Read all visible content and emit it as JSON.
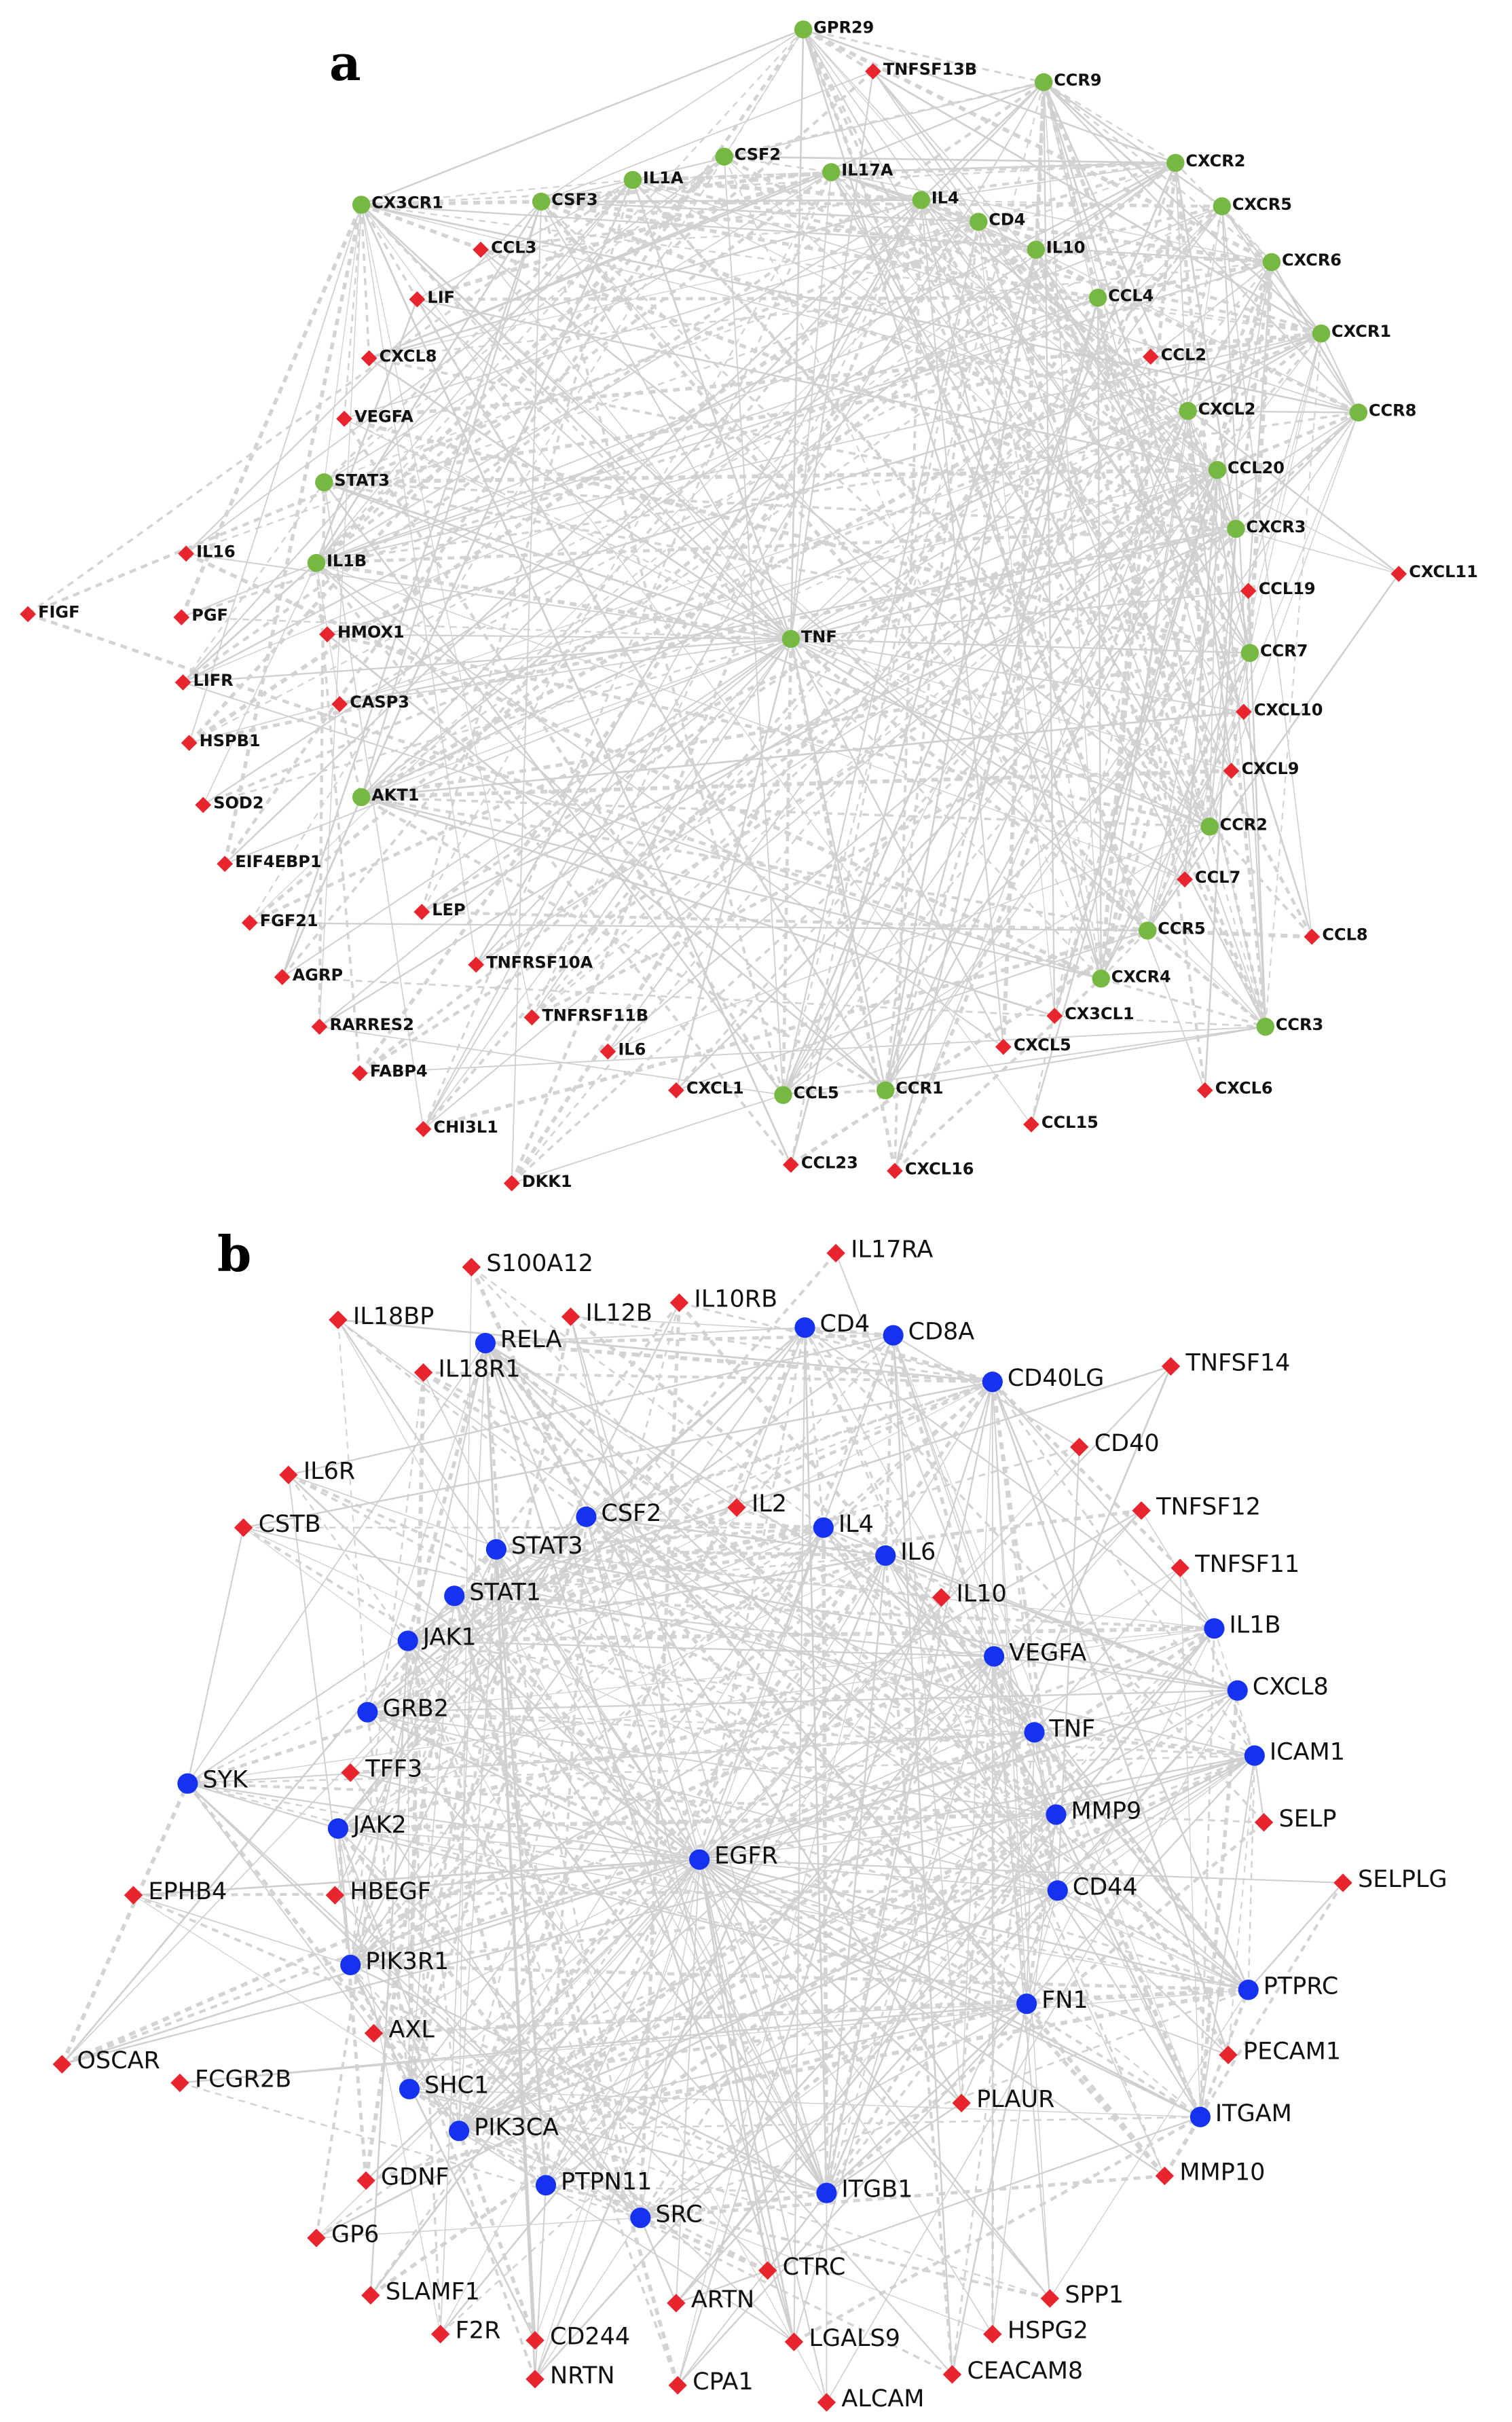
{
  "panels": [
    {
      "label": "a",
      "node_colors": {
        "hub": "#77b843",
        "leaf": "#e8252f"
      },
      "center_node": "TNF",
      "nodes": [
        {
          "id": "GPR29",
          "shape": "circle"
        },
        {
          "id": "TNFSF13B",
          "shape": "diamond"
        },
        {
          "id": "CCR9",
          "shape": "circle"
        },
        {
          "id": "CSF2",
          "shape": "circle"
        },
        {
          "id": "IL17A",
          "shape": "circle"
        },
        {
          "id": "IL1A",
          "shape": "circle"
        },
        {
          "id": "IL4",
          "shape": "circle"
        },
        {
          "id": "CD4",
          "shape": "circle"
        },
        {
          "id": "CXCR2",
          "shape": "circle"
        },
        {
          "id": "CX3CR1",
          "shape": "circle"
        },
        {
          "id": "CSF3",
          "shape": "circle"
        },
        {
          "id": "CCL3",
          "shape": "diamond"
        },
        {
          "id": "IL10",
          "shape": "circle"
        },
        {
          "id": "CXCR5",
          "shape": "circle"
        },
        {
          "id": "CXCR6",
          "shape": "circle"
        },
        {
          "id": "LIF",
          "shape": "diamond"
        },
        {
          "id": "CCL4",
          "shape": "circle"
        },
        {
          "id": "CXCR1",
          "shape": "circle"
        },
        {
          "id": "CXCL8",
          "shape": "diamond"
        },
        {
          "id": "CCL2",
          "shape": "diamond"
        },
        {
          "id": "CXCL2",
          "shape": "circle"
        },
        {
          "id": "CCR8",
          "shape": "circle"
        },
        {
          "id": "VEGFA",
          "shape": "diamond"
        },
        {
          "id": "CCL20",
          "shape": "circle"
        },
        {
          "id": "STAT3",
          "shape": "circle"
        },
        {
          "id": "CXCR3",
          "shape": "circle"
        },
        {
          "id": "IL16",
          "shape": "diamond"
        },
        {
          "id": "IL1B",
          "shape": "circle"
        },
        {
          "id": "CXCL11",
          "shape": "diamond"
        },
        {
          "id": "CCL19",
          "shape": "diamond"
        },
        {
          "id": "FIGF",
          "shape": "diamond"
        },
        {
          "id": "PGF",
          "shape": "diamond"
        },
        {
          "id": "HMOX1",
          "shape": "diamond"
        },
        {
          "id": "TNF",
          "shape": "circle"
        },
        {
          "id": "CCR7",
          "shape": "circle"
        },
        {
          "id": "LIFR",
          "shape": "diamond"
        },
        {
          "id": "CASP3",
          "shape": "diamond"
        },
        {
          "id": "CXCL10",
          "shape": "diamond"
        },
        {
          "id": "HSPB1",
          "shape": "diamond"
        },
        {
          "id": "CXCL9",
          "shape": "diamond"
        },
        {
          "id": "AKT1",
          "shape": "circle"
        },
        {
          "id": "SOD2",
          "shape": "diamond"
        },
        {
          "id": "CCR2",
          "shape": "circle"
        },
        {
          "id": "EIF4EBP1",
          "shape": "diamond"
        },
        {
          "id": "CCL7",
          "shape": "diamond"
        },
        {
          "id": "LEP",
          "shape": "diamond"
        },
        {
          "id": "FGF21",
          "shape": "diamond"
        },
        {
          "id": "CCR5",
          "shape": "circle"
        },
        {
          "id": "CCL8",
          "shape": "diamond"
        },
        {
          "id": "TNFRSF10A",
          "shape": "diamond"
        },
        {
          "id": "AGRP",
          "shape": "diamond"
        },
        {
          "id": "CXCR4",
          "shape": "circle"
        },
        {
          "id": "TNFRSF11B",
          "shape": "diamond"
        },
        {
          "id": "CX3CL1",
          "shape": "diamond"
        },
        {
          "id": "RARRES2",
          "shape": "diamond"
        },
        {
          "id": "CCR3",
          "shape": "circle"
        },
        {
          "id": "IL6",
          "shape": "diamond"
        },
        {
          "id": "CXCL5",
          "shape": "diamond"
        },
        {
          "id": "FABP4",
          "shape": "diamond"
        },
        {
          "id": "CXCL1",
          "shape": "diamond"
        },
        {
          "id": "CCL5",
          "shape": "circle"
        },
        {
          "id": "CCR1",
          "shape": "circle"
        },
        {
          "id": "CXCL6",
          "shape": "diamond"
        },
        {
          "id": "CHI3L1",
          "shape": "diamond"
        },
        {
          "id": "CCL15",
          "shape": "diamond"
        },
        {
          "id": "CCL23",
          "shape": "diamond"
        },
        {
          "id": "CXCL16",
          "shape": "diamond"
        },
        {
          "id": "DKK1",
          "shape": "diamond"
        }
      ]
    },
    {
      "label": "b",
      "node_colors": {
        "hub": "#1432f0",
        "leaf": "#e8252f"
      },
      "center_node": "EGFR",
      "nodes": [
        {
          "id": "IL17RA",
          "shape": "diamond"
        },
        {
          "id": "S100A12",
          "shape": "diamond"
        },
        {
          "id": "IL10RB",
          "shape": "diamond"
        },
        {
          "id": "IL18BP",
          "shape": "diamond"
        },
        {
          "id": "IL12B",
          "shape": "diamond"
        },
        {
          "id": "CD4",
          "shape": "circle"
        },
        {
          "id": "CD8A",
          "shape": "circle"
        },
        {
          "id": "RELA",
          "shape": "circle"
        },
        {
          "id": "TNFSF14",
          "shape": "diamond"
        },
        {
          "id": "IL18R1",
          "shape": "diamond"
        },
        {
          "id": "CD40LG",
          "shape": "circle"
        },
        {
          "id": "CD40",
          "shape": "diamond"
        },
        {
          "id": "IL6R",
          "shape": "diamond"
        },
        {
          "id": "IL2",
          "shape": "diamond"
        },
        {
          "id": "TNFSF12",
          "shape": "diamond"
        },
        {
          "id": "CSF2",
          "shape": "circle"
        },
        {
          "id": "CSTB",
          "shape": "diamond"
        },
        {
          "id": "IL4",
          "shape": "circle"
        },
        {
          "id": "STAT3",
          "shape": "circle"
        },
        {
          "id": "IL6",
          "shape": "circle"
        },
        {
          "id": "TNFSF11",
          "shape": "diamond"
        },
        {
          "id": "STAT1",
          "shape": "circle"
        },
        {
          "id": "IL10",
          "shape": "diamond"
        },
        {
          "id": "IL1B",
          "shape": "circle"
        },
        {
          "id": "JAK1",
          "shape": "circle"
        },
        {
          "id": "VEGFA",
          "shape": "circle"
        },
        {
          "id": "CXCL8",
          "shape": "circle"
        },
        {
          "id": "GRB2",
          "shape": "circle"
        },
        {
          "id": "TNF",
          "shape": "circle"
        },
        {
          "id": "ICAM1",
          "shape": "circle"
        },
        {
          "id": "TFF3",
          "shape": "diamond"
        },
        {
          "id": "SYK",
          "shape": "circle"
        },
        {
          "id": "JAK2",
          "shape": "circle"
        },
        {
          "id": "MMP9",
          "shape": "circle"
        },
        {
          "id": "SELP",
          "shape": "diamond"
        },
        {
          "id": "EGFR",
          "shape": "circle"
        },
        {
          "id": "SELPLG",
          "shape": "diamond"
        },
        {
          "id": "EPHB4",
          "shape": "diamond"
        },
        {
          "id": "HBEGF",
          "shape": "diamond"
        },
        {
          "id": "CD44",
          "shape": "circle"
        },
        {
          "id": "PIK3R1",
          "shape": "circle"
        },
        {
          "id": "PTPRC",
          "shape": "circle"
        },
        {
          "id": "FN1",
          "shape": "circle"
        },
        {
          "id": "AXL",
          "shape": "diamond"
        },
        {
          "id": "OSCAR",
          "shape": "diamond"
        },
        {
          "id": "PECAM1",
          "shape": "diamond"
        },
        {
          "id": "FCGR2B",
          "shape": "diamond"
        },
        {
          "id": "SHC1",
          "shape": "circle"
        },
        {
          "id": "PLAUR",
          "shape": "diamond"
        },
        {
          "id": "ITGAM",
          "shape": "circle"
        },
        {
          "id": "PIK3CA",
          "shape": "circle"
        },
        {
          "id": "GDNF",
          "shape": "diamond"
        },
        {
          "id": "MMP10",
          "shape": "diamond"
        },
        {
          "id": "PTPN11",
          "shape": "circle"
        },
        {
          "id": "ITGB1",
          "shape": "circle"
        },
        {
          "id": "SRC",
          "shape": "circle"
        },
        {
          "id": "GP6",
          "shape": "diamond"
        },
        {
          "id": "CTRC",
          "shape": "diamond"
        },
        {
          "id": "SLAMF1",
          "shape": "diamond"
        },
        {
          "id": "ARTN",
          "shape": "diamond"
        },
        {
          "id": "SPP1",
          "shape": "diamond"
        },
        {
          "id": "F2R",
          "shape": "diamond"
        },
        {
          "id": "CD244",
          "shape": "diamond"
        },
        {
          "id": "LGALS9",
          "shape": "diamond"
        },
        {
          "id": "HSPG2",
          "shape": "diamond"
        },
        {
          "id": "CEACAM8",
          "shape": "diamond"
        },
        {
          "id": "NRTN",
          "shape": "diamond"
        },
        {
          "id": "CPA1",
          "shape": "diamond"
        },
        {
          "id": "ALCAM",
          "shape": "diamond"
        }
      ]
    }
  ]
}
